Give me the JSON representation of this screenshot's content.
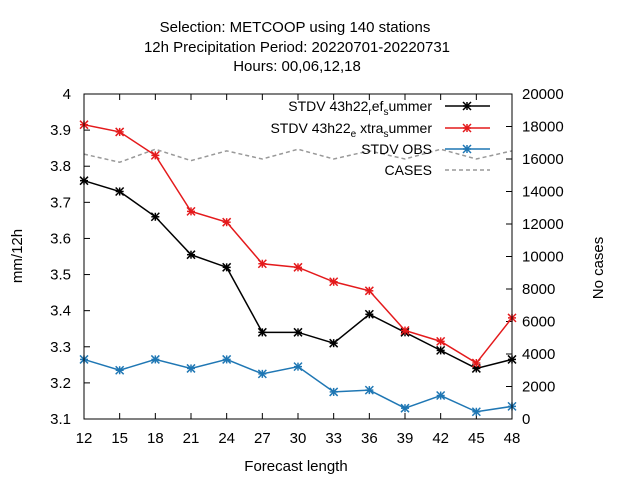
{
  "chart_data": {
    "type": "line",
    "title_lines": [
      "Selection: METCOOP using   140 stations",
      "12h Precipitation    Period: 20220701-20220731",
      "Hours:  00,06,12,18"
    ],
    "xlabel": "Forecast length",
    "ylabel": "mm/12h",
    "y2label": "No cases",
    "x": [
      12,
      15,
      18,
      21,
      24,
      27,
      30,
      33,
      36,
      39,
      42,
      45,
      48
    ],
    "xlim": [
      12,
      48
    ],
    "ylim": [
      3.1,
      4.0
    ],
    "y2lim": [
      0,
      20000
    ],
    "yticks": [
      3.1,
      3.2,
      3.3,
      3.4,
      3.5,
      3.6,
      3.7,
      3.8,
      3.9,
      4
    ],
    "ytick_labels": [
      "3.1",
      "3.2",
      "3.3",
      "3.4",
      "3.5",
      "3.6",
      "3.7",
      "3.8",
      "3.9",
      "4"
    ],
    "y2ticks": [
      0,
      2000,
      4000,
      6000,
      8000,
      10000,
      12000,
      14000,
      16000,
      18000,
      20000
    ],
    "legend_position": "top-right",
    "series": [
      {
        "name": "STDV 43h22_ref_summer",
        "legend_main": "STDV 43h22",
        "legend_parts": [
          [
            "sub",
            "r"
          ],
          [
            "base",
            "ef"
          ],
          [
            "sub",
            "s"
          ],
          [
            "base",
            "ummer"
          ]
        ],
        "color": "#000000",
        "axis": "y",
        "dashed": false,
        "marker": "star",
        "values": [
          3.76,
          3.73,
          3.66,
          3.555,
          3.52,
          3.34,
          3.34,
          3.31,
          3.39,
          3.34,
          3.29,
          3.24,
          3.265
        ]
      },
      {
        "name": "STDV 43h22_extra_summer",
        "legend_main": "STDV 43h22",
        "legend_parts": [
          [
            "sub",
            "e"
          ],
          [
            "base",
            " xtra"
          ],
          [
            "sub",
            "s"
          ],
          [
            "base",
            "ummer"
          ]
        ],
        "color": "#e41a1c",
        "axis": "y",
        "dashed": false,
        "marker": "star",
        "values": [
          3.915,
          3.895,
          3.83,
          3.675,
          3.645,
          3.53,
          3.52,
          3.48,
          3.455,
          3.345,
          3.315,
          3.255,
          3.38
        ]
      },
      {
        "name": "STDV OBS",
        "legend_main": "STDV OBS",
        "legend_parts": [],
        "color": "#1f77b4",
        "axis": "y",
        "dashed": false,
        "marker": "star",
        "values": [
          3.265,
          3.235,
          3.265,
          3.24,
          3.265,
          3.225,
          3.245,
          3.175,
          3.18,
          3.13,
          3.165,
          3.12,
          3.135
        ]
      },
      {
        "name": "CASES",
        "legend_main": "CASES",
        "legend_parts": [],
        "color": "#999999",
        "axis": "y2",
        "dashed": true,
        "marker": "none",
        "values": [
          16300,
          15800,
          16600,
          15900,
          16500,
          16000,
          16600,
          16000,
          16500,
          16000,
          16600,
          16000,
          16500
        ]
      }
    ]
  }
}
